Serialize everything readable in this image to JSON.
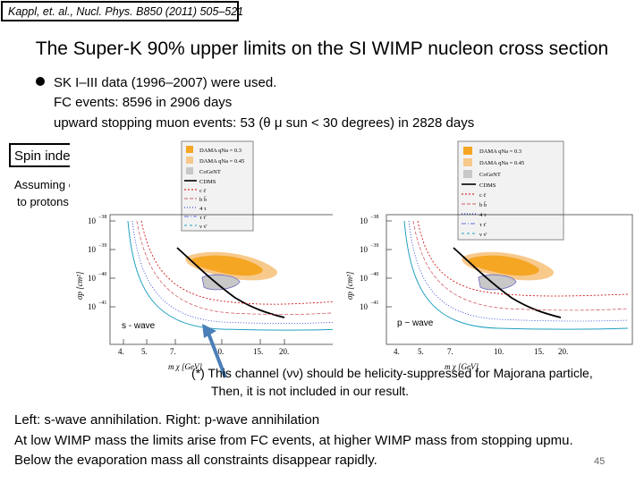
{
  "citation": "Kappl, et. al., Nucl. Phys. B850 (2011) 505–521",
  "title": "The Super-K 90% upper limits on the SI WIMP nucleon cross section",
  "bullet_lines": [
    "SK I–III data (1996–2007) were used.",
    "FC events:  8596 in 2906 days",
    "upward stopping muon events: 53 (θ μ sun < 30 degrees) in 2828 days"
  ],
  "box_label": "Spin independent",
  "assumption": [
    "Assuming equal coupling",
    "to protons and neutrons"
  ],
  "legend_items": [
    "DAMA  qNa = 0.3",
    "DAMA  qNa = 0.45",
    "CoGeNT",
    "CDMS",
    "c c̄",
    "b b̄",
    "4 τ",
    "τ τ̄",
    "ν ν̄"
  ],
  "colors": {
    "dama03": "#f5a623",
    "dama045": "#f7c98b",
    "cogent": "#c8c8c8",
    "cdms": "#000000",
    "cc": "#cc0000",
    "bb": "#d0606a",
    "tau4": "#1a2fd0",
    "tautau": "#6070e0",
    "nunu": "#20a0c0",
    "arrow": "#4a7fb8",
    "box": "#b0aee0"
  },
  "plots": [
    {
      "wave_label": "s - wave",
      "y_ticks": [
        "10",
        "10",
        "10",
        "10"
      ],
      "y_exps": [
        "−38",
        "−39",
        "−40",
        "−41"
      ],
      "x_ticks": [
        "4.",
        "5.",
        "7.",
        "10.",
        "15.",
        "20."
      ],
      "ylabel": "σp [cm²]",
      "xlabel": "m χ [GeV]"
    },
    {
      "wave_label": "p − wave",
      "y_ticks": [
        "10",
        "10",
        "10",
        "10"
      ],
      "y_exps": [
        "−38",
        "−39",
        "−40",
        "−41"
      ],
      "x_ticks": [
        "4.",
        "5.",
        "7.",
        "10.",
        "15.",
        "20."
      ],
      "ylabel": "σp [cm²]",
      "xlabel": "m χ [GeV]"
    }
  ],
  "note_lines": [
    "(*) This channel (νν) should be helicity-suppressed for Majorana particle,",
    "Then, it is not included in our result."
  ],
  "bottom_lines": [
    "Left: s-wave annihilation. Right: p-wave annihilation",
    "At low WIMP mass the limits arise from FC events, at higher WIMP mass from stopping  upmu.",
    "Below the evaporation mass all constraints disappear rapidly."
  ],
  "page_number": "45"
}
